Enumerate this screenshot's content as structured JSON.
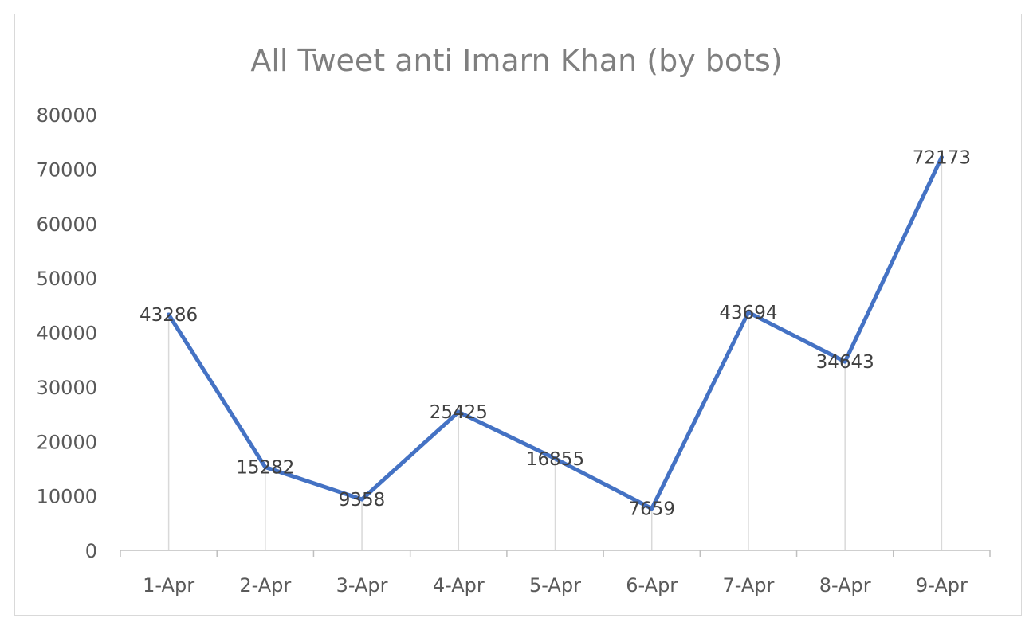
{
  "chart_data": {
    "type": "line",
    "title": "All Tweet anti Imarn Khan (by bots)",
    "categories": [
      "1-Apr",
      "2-Apr",
      "3-Apr",
      "4-Apr",
      "5-Apr",
      "6-Apr",
      "7-Apr",
      "8-Apr",
      "9-Apr"
    ],
    "series": [
      {
        "values": [
          43286,
          15282,
          9358,
          25425,
          16855,
          7659,
          43694,
          34643,
          72173
        ]
      }
    ],
    "data_labels": [
      "43286",
      "15282",
      "9358",
      "25425",
      "16855",
      "7659",
      "43694",
      "34643",
      "72173"
    ],
    "yticks": [
      "0",
      "10000",
      "20000",
      "30000",
      "40000",
      "50000",
      "60000",
      "70000",
      "80000"
    ],
    "ylim": [
      0,
      80000
    ],
    "xlabel": "",
    "ylabel": "",
    "grid": false,
    "drop_lines": true,
    "legend": "none",
    "line_color": "#4472c4"
  }
}
